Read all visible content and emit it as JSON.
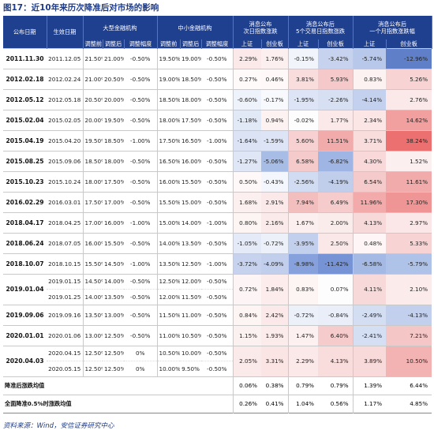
{
  "title": "图17：近10年来历次降准后对市场的影响",
  "source": "资料来源：Wind，安信证券研究中心",
  "headers": {
    "announce_date": "公布日期",
    "effective_date": "生效日期",
    "large_inst": "大型金融机构",
    "small_inst": "中小金融机构",
    "before": "调整前",
    "after": "调整后",
    "magnitude": "调整幅度",
    "next_day_1": "消息公布",
    "next_day_2": "次日指数涨跌",
    "five_day_1": "消息公布后",
    "five_day_2": "5个交易日指数涨跌",
    "month_1": "消息公布后",
    "month_2": "一个月指数涨跌幅",
    "shanghai": "上证",
    "chinext": "创业板"
  },
  "rows": [
    {
      "announce": "2011.11.30",
      "subs": [
        {
          "eff": "2011.12.05",
          "lb": "21.50%",
          "la": "21.00%",
          "lm": "-0.50%",
          "sb": "19.50%",
          "sa": "19.00%",
          "sm": "-0.50%"
        }
      ],
      "nd_sh": "2.29%",
      "nd_cy": "1.76%",
      "fd_sh": "-0.15%",
      "fd_cy": "-3.42%",
      "m_sh": "-5.74%",
      "m_cy": "-12.96%",
      "c": [
        "#fbe9e9",
        "#fcefef",
        "#f1f4fb",
        "#c7d3ee",
        "#b8c8ea",
        "#5f80c9"
      ]
    },
    {
      "announce": "2012.02.18",
      "subs": [
        {
          "eff": "2012.02.24",
          "lb": "21.00%",
          "la": "20.50%",
          "lm": "-0.50%",
          "sb": "19.00%",
          "sa": "18.50%",
          "sm": "-0.50%"
        }
      ],
      "nd_sh": "0.27%",
      "nd_cy": "0.46%",
      "fd_sh": "3.81%",
      "fd_cy": "5.93%",
      "m_sh": "0.83%",
      "m_cy": "5.26%",
      "c": [
        "#fefafa",
        "#fef8f8",
        "#f9dcdc",
        "#f5c9c9",
        "#fdf2f2",
        "#f7d3d3"
      ]
    },
    {
      "announce": "2012.05.12",
      "subs": [
        {
          "eff": "2012.05.18",
          "lb": "20.50%",
          "la": "20.00%",
          "lm": "-0.50%",
          "sb": "18.50%",
          "sa": "18.00%",
          "sm": "-0.50%"
        }
      ],
      "nd_sh": "-0.60%",
      "nd_cy": "-0.17%",
      "fd_sh": "-1.95%",
      "fd_cy": "-2.26%",
      "m_sh": "-4.14%",
      "m_cy": "2.76%",
      "c": [
        "#eef2fa",
        "#f7f9fd",
        "#dce4f5",
        "#d7e0f3",
        "#c4d1ee",
        "#fbe8e8"
      ]
    },
    {
      "announce": "2015.02.04",
      "subs": [
        {
          "eff": "2015.02.05",
          "lb": "20.00%",
          "la": "19.50%",
          "lm": "-0.50%",
          "sb": "18.00%",
          "sa": "17.50%",
          "sm": "-0.50%"
        }
      ],
      "nd_sh": "-1.18%",
      "nd_cy": "0.94%",
      "fd_sh": "-0.02%",
      "fd_cy": "1.77%",
      "m_sh": "2.34%",
      "m_cy": "14.62%",
      "c": [
        "#e1e8f6",
        "#fdf2f2",
        "#fdfdfd",
        "#fbe9e9",
        "#fbe5e5",
        "#f29f9f"
      ]
    },
    {
      "announce": "2015.04.19",
      "subs": [
        {
          "eff": "2015.04.20",
          "lb": "19.50%",
          "la": "18.50%",
          "lm": "-1.00%",
          "sb": "17.50%",
          "sa": "16.50%",
          "sm": "-1.00%"
        }
      ],
      "nd_sh": "-1.64%",
      "nd_cy": "-1.59%",
      "fd_sh": "5.60%",
      "fd_cy": "11.51%",
      "m_sh": "3.71%",
      "m_cy": "38.24%",
      "c": [
        "#dbe3f5",
        "#dce4f5",
        "#f7d1d1",
        "#f2abab",
        "#f9dcdc",
        "#ed7070"
      ]
    },
    {
      "announce": "2015.08.25",
      "subs": [
        {
          "eff": "2015.09.06",
          "lb": "18.50%",
          "la": "18.00%",
          "lm": "-0.50%",
          "sb": "16.50%",
          "sa": "16.00%",
          "sm": "-0.50%"
        }
      ],
      "nd_sh": "-1.27%",
      "nd_cy": "-5.06%",
      "fd_sh": "6.58%",
      "fd_cy": "-6.82%",
      "m_sh": "4.30%",
      "m_cy": "1.52%",
      "c": [
        "#dfe7f6",
        "#a8bde6",
        "#f5caca",
        "#9fb5e3",
        "#f8d8d8",
        "#fcefef"
      ]
    },
    {
      "announce": "2015.10.23",
      "subs": [
        {
          "eff": "2015.10.24",
          "lb": "18.00%",
          "la": "17.50%",
          "lm": "-0.50%",
          "sb": "16.00%",
          "sa": "15.50%",
          "sm": "-0.50%"
        }
      ],
      "nd_sh": "0.50%",
      "nd_cy": "-0.43%",
      "fd_sh": "-2.56%",
      "fd_cy": "-4.19%",
      "m_sh": "6.54%",
      "m_cy": "11.61%",
      "c": [
        "#fef8f8",
        "#f3f6fc",
        "#d1dbf2",
        "#c0ceec",
        "#f5caca",
        "#f2abab"
      ]
    },
    {
      "announce": "2016.02.29",
      "subs": [
        {
          "eff": "2016.03.01",
          "lb": "17.50%",
          "la": "17.00%",
          "lm": "-0.50%",
          "sb": "15.50%",
          "sa": "15.00%",
          "sm": "-0.50%"
        }
      ],
      "nd_sh": "1.68%",
      "nd_cy": "2.91%",
      "fd_sh": "7.94%",
      "fd_cy": "6.49%",
      "m_sh": "11.96%",
      "m_cy": "17.30%",
      "c": [
        "#fcefef",
        "#fbe8e8",
        "#f3bebe",
        "#f5cbcb",
        "#f2aaaa",
        "#f09595"
      ]
    },
    {
      "announce": "2018.04.17",
      "subs": [
        {
          "eff": "2018.04.25",
          "lb": "17.00%",
          "la": "16.00%",
          "lm": "-1.00%",
          "sb": "15.00%",
          "sa": "14.00%",
          "sm": "-1.00%"
        }
      ],
      "nd_sh": "0.80%",
      "nd_cy": "2.16%",
      "fd_sh": "1.67%",
      "fd_cy": "2.00%",
      "m_sh": "4.13%",
      "m_cy": "2.97%",
      "c": [
        "#fdf4f4",
        "#fbeaea",
        "#fcefef",
        "#fbecec",
        "#f8d9d9",
        "#fbe7e7"
      ]
    },
    {
      "announce": "2018.06.24",
      "subs": [
        {
          "eff": "2018.07.05",
          "lb": "16.00%",
          "la": "15.50%",
          "lm": "-0.50%",
          "sb": "14.00%",
          "sa": "13.50%",
          "sm": "-0.50%"
        }
      ],
      "nd_sh": "-1.05%",
      "nd_cy": "-0.72%",
      "fd_sh": "-3.95%",
      "fd_cy": "2.50%",
      "m_sh": "0.48%",
      "m_cy": "5.33%",
      "c": [
        "#e4eaf7",
        "#ebf0f9",
        "#c3d0ed",
        "#fae8e8",
        "#fef6f6",
        "#f7d3d3"
      ]
    },
    {
      "announce": "2018.10.07",
      "subs": [
        {
          "eff": "2018.10.15",
          "lb": "15.50%",
          "la": "14.50%",
          "lm": "-1.00%",
          "sb": "13.50%",
          "sa": "12.50%",
          "sm": "-1.00%"
        }
      ],
      "nd_sh": "-3.72%",
      "nd_cy": "-4.09%",
      "fd_sh": "-8.98%",
      "fd_cy": "-11.42%",
      "m_sh": "-6.58%",
      "m_cy": "-5.79%",
      "c": [
        "#c6d2ee",
        "#c1ceec",
        "#86a1dc",
        "#7693d6",
        "#a4bae5",
        "#afc2e8"
      ]
    },
    {
      "announce": "2019.01.04",
      "subs": [
        {
          "eff": "2019.01.15",
          "lb": "14.50%",
          "la": "14.00%",
          "lm": "-0.50%",
          "sb": "12.50%",
          "sa": "12.00%",
          "sm": "-0.50%"
        },
        {
          "eff": "2019.01.25",
          "lb": "14.00%",
          "la": "13.50%",
          "lm": "-0.50%",
          "sb": "12.00%",
          "sa": "11.50%",
          "sm": "-0.50%"
        }
      ],
      "nd_sh": "0.72%",
      "nd_cy": "1.84%",
      "fd_sh": "0.83%",
      "fd_cy": "0.07%",
      "m_sh": "4.11%",
      "m_cy": "2.10%",
      "c": [
        "#fdf5f5",
        "#fcecec",
        "#fdf4f4",
        "#fefdfd",
        "#f8d9d9",
        "#fbebeb"
      ]
    },
    {
      "announce": "2019.09.06",
      "subs": [
        {
          "eff": "2019.09.16",
          "lb": "13.50%",
          "la": "13.00%",
          "lm": "-0.50%",
          "sb": "11.50%",
          "sa": "11.00%",
          "sm": "-0.50%"
        }
      ],
      "nd_sh": "0.84%",
      "nd_cy": "2.42%",
      "fd_sh": "-0.72%",
      "fd_cy": "-0.84%",
      "m_sh": "-2.49%",
      "m_cy": "-4.13%",
      "c": [
        "#fdf4f4",
        "#fbe9e9",
        "#ebf0f9",
        "#e9eef9",
        "#d4def3",
        "#c3d0ed"
      ]
    },
    {
      "announce": "2020.01.01",
      "subs": [
        {
          "eff": "2020.01.06",
          "lb": "13.00%",
          "la": "12.50%",
          "lm": "-0.50%",
          "sb": "11.00%",
          "sa": "10.50%",
          "sm": "-0.50%"
        }
      ],
      "nd_sh": "1.15%",
      "nd_cy": "1.93%",
      "fd_sh": "1.47%",
      "fd_cy": "6.40%",
      "m_sh": "-2.41%",
      "m_cy": "7.21%",
      "c": [
        "#fcf1f1",
        "#fbebeb",
        "#fcf0f0",
        "#f5cbcb",
        "#d5dff3",
        "#f5c6c6"
      ]
    },
    {
      "announce": "2020.04.03",
      "subs": [
        {
          "eff": "2020.04.15",
          "lb": "12.50%",
          "la": "12.50%",
          "lm": "0%",
          "sb": "10.50%",
          "sa": "10.00%",
          "sm": "-0.50%"
        },
        {
          "eff": "2020.05.15",
          "lb": "12.50%",
          "la": "12.50%",
          "lm": "0%",
          "sb": "10.00%",
          "sa": "9.50%",
          "sm": "-0.50%"
        }
      ],
      "nd_sh": "2.05%",
      "nd_cy": "3.31%",
      "fd_sh": "2.29%",
      "fd_cy": "4.13%",
      "m_sh": "3.89%",
      "m_cy": "10.50%",
      "c": [
        "#fbeaea",
        "#fae4e4",
        "#fbe9e9",
        "#f9dcdc",
        "#f9dada",
        "#f3b3b3"
      ]
    }
  ],
  "footers": [
    {
      "label": "降准后涨跌均值",
      "vals": [
        "0.06%",
        "0.38%",
        "0.79%",
        "0.79%",
        "1.39%",
        "6.44%"
      ]
    },
    {
      "label": "全面降准0.5%时涨跌均值",
      "vals": [
        "0.26%",
        "0.41%",
        "1.04%",
        "0.56%",
        "1.17%",
        "4.85%"
      ]
    }
  ]
}
